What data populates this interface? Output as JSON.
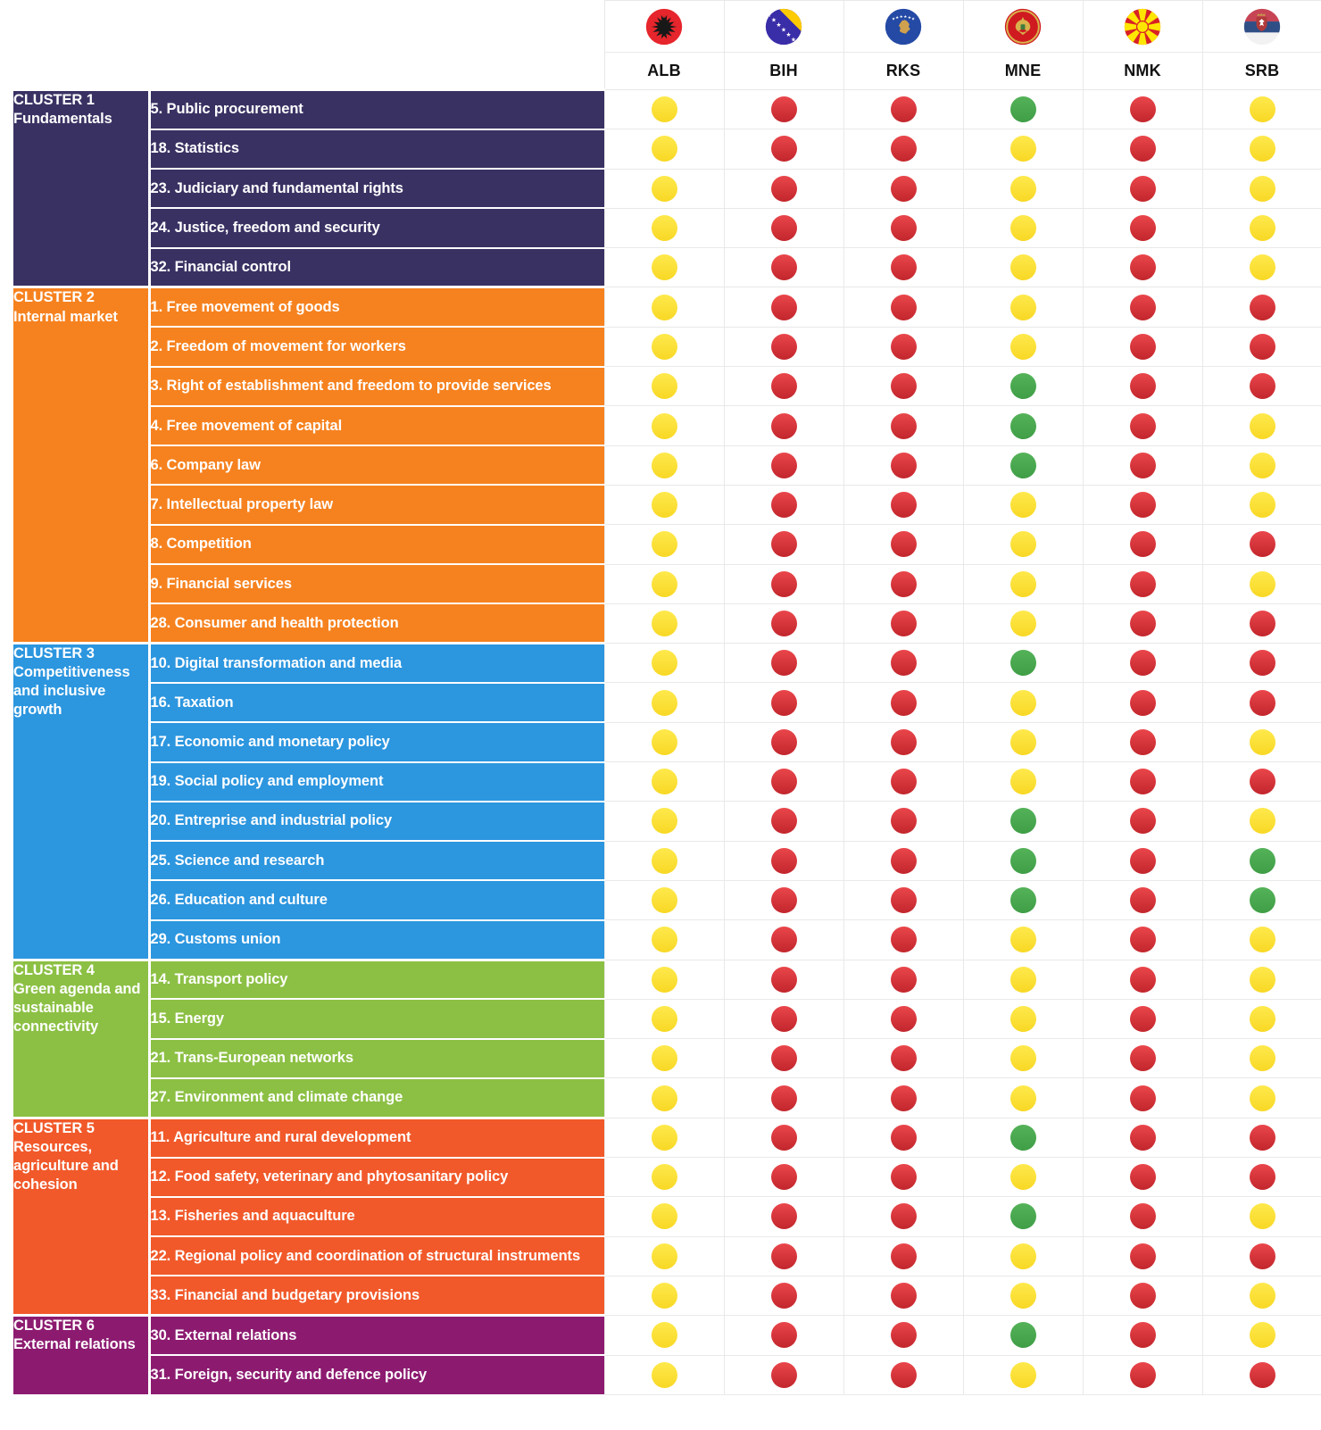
{
  "header": {
    "countries": [
      {
        "code": "ALB",
        "flag": "flag-albania"
      },
      {
        "code": "BIH",
        "flag": "flag-bosnia-herzegovina"
      },
      {
        "code": "RKS",
        "flag": "flag-kosovo"
      },
      {
        "code": "MNE",
        "flag": "flag-montenegro"
      },
      {
        "code": "NMK",
        "flag": "flag-north-macedonia"
      },
      {
        "code": "SRB",
        "flag": "flag-serbia"
      }
    ]
  },
  "status_colors": {
    "yellow": "#FBDD36",
    "red": "#D93036",
    "green": "#47AA4D"
  },
  "chart_data": {
    "type": "table",
    "columns": [
      "ALB",
      "BIH",
      "RKS",
      "MNE",
      "NMK",
      "SRB"
    ],
    "legend": {
      "yellow": "#FBDD36",
      "red": "#D93036",
      "green": "#47AA4D"
    },
    "groups": [
      {
        "name": "CLUSTER 1",
        "subtitle": "Fundamentals",
        "color": "#3A3163",
        "rows": [
          {
            "label": "5. Public procurement",
            "values": [
              "yellow",
              "red",
              "red",
              "green",
              "red",
              "yellow"
            ]
          },
          {
            "label": "18. Statistics",
            "values": [
              "yellow",
              "red",
              "red",
              "yellow",
              "red",
              "yellow"
            ]
          },
          {
            "label": "23. Judiciary and fundamental rights",
            "values": [
              "yellow",
              "red",
              "red",
              "yellow",
              "red",
              "yellow"
            ]
          },
          {
            "label": "24. Justice, freedom and security",
            "values": [
              "yellow",
              "red",
              "red",
              "yellow",
              "red",
              "yellow"
            ]
          },
          {
            "label": "32. Financial control",
            "values": [
              "yellow",
              "red",
              "red",
              "yellow",
              "red",
              "yellow"
            ]
          }
        ]
      },
      {
        "name": "CLUSTER 2",
        "subtitle": "Internal market",
        "color": "#F6821F",
        "rows": [
          {
            "label": "1. Free movement of goods",
            "values": [
              "yellow",
              "red",
              "red",
              "yellow",
              "red",
              "red"
            ]
          },
          {
            "label": "2. Freedom of movement for workers",
            "values": [
              "yellow",
              "red",
              "red",
              "yellow",
              "red",
              "red"
            ]
          },
          {
            "label": "3. Right of establishment and freedom to provide services",
            "values": [
              "yellow",
              "red",
              "red",
              "green",
              "red",
              "red"
            ]
          },
          {
            "label": "4. Free movement of capital",
            "values": [
              "yellow",
              "red",
              "red",
              "green",
              "red",
              "yellow"
            ]
          },
          {
            "label": "6. Company law",
            "values": [
              "yellow",
              "red",
              "red",
              "green",
              "red",
              "yellow"
            ]
          },
          {
            "label": "7. Intellectual property law",
            "values": [
              "yellow",
              "red",
              "red",
              "yellow",
              "red",
              "yellow"
            ]
          },
          {
            "label": "8. Competition",
            "values": [
              "yellow",
              "red",
              "red",
              "yellow",
              "red",
              "red"
            ]
          },
          {
            "label": "9. Financial services",
            "values": [
              "yellow",
              "red",
              "red",
              "yellow",
              "red",
              "yellow"
            ]
          },
          {
            "label": "28. Consumer and health protection",
            "values": [
              "yellow",
              "red",
              "red",
              "yellow",
              "red",
              "red"
            ]
          }
        ]
      },
      {
        "name": "CLUSTER 3",
        "subtitle": "Competitiveness and inclusive growth",
        "color": "#2C96DF",
        "rows": [
          {
            "label": "10. Digital transformation and media",
            "values": [
              "yellow",
              "red",
              "red",
              "green",
              "red",
              "red"
            ]
          },
          {
            "label": "16. Taxation",
            "values": [
              "yellow",
              "red",
              "red",
              "yellow",
              "red",
              "red"
            ]
          },
          {
            "label": "17. Economic and monetary policy",
            "values": [
              "yellow",
              "red",
              "red",
              "yellow",
              "red",
              "yellow"
            ]
          },
          {
            "label": "19. Social policy and employment",
            "values": [
              "yellow",
              "red",
              "red",
              "yellow",
              "red",
              "red"
            ]
          },
          {
            "label": "20. Entreprise and industrial policy",
            "values": [
              "yellow",
              "red",
              "red",
              "green",
              "red",
              "yellow"
            ]
          },
          {
            "label": "25. Science and research",
            "values": [
              "yellow",
              "red",
              "red",
              "green",
              "red",
              "green"
            ]
          },
          {
            "label": "26. Education and culture",
            "values": [
              "yellow",
              "red",
              "red",
              "green",
              "red",
              "green"
            ]
          },
          {
            "label": "29. Customs union",
            "values": [
              "yellow",
              "red",
              "red",
              "yellow",
              "red",
              "yellow"
            ]
          }
        ]
      },
      {
        "name": "CLUSTER 4",
        "subtitle": "Green agenda and sustainable connectivity",
        "color": "#8CC044",
        "rows": [
          {
            "label": "14. Transport policy",
            "values": [
              "yellow",
              "red",
              "red",
              "yellow",
              "red",
              "yellow"
            ]
          },
          {
            "label": "15. Energy",
            "values": [
              "yellow",
              "red",
              "red",
              "yellow",
              "red",
              "yellow"
            ]
          },
          {
            "label": "21. Trans-European networks",
            "values": [
              "yellow",
              "red",
              "red",
              "yellow",
              "red",
              "yellow"
            ]
          },
          {
            "label": "27. Environment and climate change",
            "values": [
              "yellow",
              "red",
              "red",
              "yellow",
              "red",
              "yellow"
            ]
          }
        ]
      },
      {
        "name": "CLUSTER 5",
        "subtitle": "Resources, agriculture and cohesion",
        "color": "#F1592A",
        "rows": [
          {
            "label": "11. Agriculture and rural development",
            "values": [
              "yellow",
              "red",
              "red",
              "green",
              "red",
              "red"
            ]
          },
          {
            "label": "12. Food safety, veterinary and phytosanitary policy",
            "values": [
              "yellow",
              "red",
              "red",
              "yellow",
              "red",
              "red"
            ]
          },
          {
            "label": "13. Fisheries and aquaculture",
            "values": [
              "yellow",
              "red",
              "red",
              "green",
              "red",
              "yellow"
            ]
          },
          {
            "label": "22. Regional policy and coordination of structural instruments",
            "values": [
              "yellow",
              "red",
              "red",
              "yellow",
              "red",
              "red"
            ]
          },
          {
            "label": "33. Financial and budgetary provisions",
            "values": [
              "yellow",
              "red",
              "red",
              "yellow",
              "red",
              "yellow"
            ]
          }
        ]
      },
      {
        "name": "CLUSTER 6",
        "subtitle": "External relations",
        "color": "#8C1B70",
        "rows": [
          {
            "label": "30. External relations",
            "values": [
              "yellow",
              "red",
              "red",
              "green",
              "red",
              "yellow"
            ]
          },
          {
            "label": "31. Foreign, security and defence policy",
            "values": [
              "yellow",
              "red",
              "red",
              "yellow",
              "red",
              "red"
            ]
          }
        ]
      }
    ]
  }
}
